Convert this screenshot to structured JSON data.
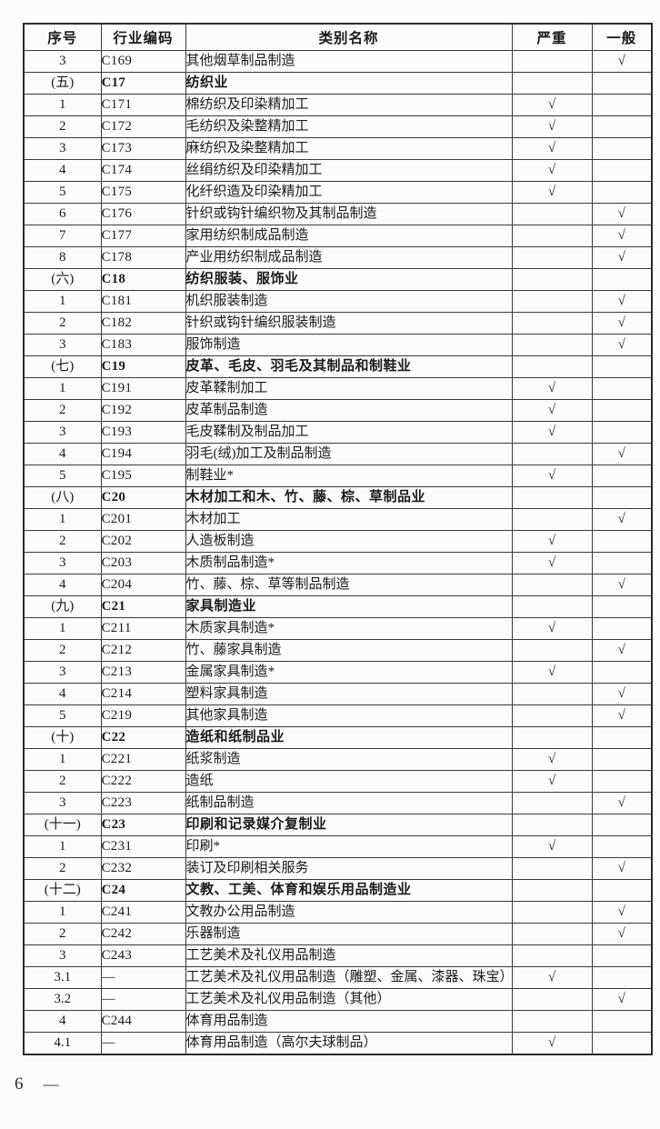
{
  "colors": {
    "border": "#2b2b2b",
    "text": "#1b1b1b",
    "background": "#fcfcfa"
  },
  "footer": {
    "page_number": "6",
    "dash": "—"
  },
  "table": {
    "checkmark": "√",
    "headers": [
      "序号",
      "行业编码",
      "类别名称",
      "严重",
      "一般"
    ],
    "rows": [
      {
        "no": "3",
        "code": "C169",
        "name": "其他烟草制品制造",
        "severe": "",
        "general": "√",
        "section": false
      },
      {
        "no": "(五)",
        "code": "C17",
        "name": "纺织业",
        "severe": "",
        "general": "",
        "section": true
      },
      {
        "no": "1",
        "code": "C171",
        "name": "棉纺织及印染精加工",
        "severe": "√",
        "general": "",
        "section": false
      },
      {
        "no": "2",
        "code": "C172",
        "name": "毛纺织及染整精加工",
        "severe": "√",
        "general": "",
        "section": false
      },
      {
        "no": "3",
        "code": "C173",
        "name": "麻纺织及染整精加工",
        "severe": "√",
        "general": "",
        "section": false
      },
      {
        "no": "4",
        "code": "C174",
        "name": "丝绢纺织及印染精加工",
        "severe": "√",
        "general": "",
        "section": false
      },
      {
        "no": "5",
        "code": "C175",
        "name": "化纤织造及印染精加工",
        "severe": "√",
        "general": "",
        "section": false
      },
      {
        "no": "6",
        "code": "C176",
        "name": "针织或钩针编织物及其制品制造",
        "severe": "",
        "general": "√",
        "section": false
      },
      {
        "no": "7",
        "code": "C177",
        "name": "家用纺织制成品制造",
        "severe": "",
        "general": "√",
        "section": false
      },
      {
        "no": "8",
        "code": "C178",
        "name": "产业用纺织制成品制造",
        "severe": "",
        "general": "√",
        "section": false
      },
      {
        "no": "(六)",
        "code": "C18",
        "name": "纺织服装、服饰业",
        "severe": "",
        "general": "",
        "section": true
      },
      {
        "no": "1",
        "code": "C181",
        "name": "机织服装制造",
        "severe": "",
        "general": "√",
        "section": false
      },
      {
        "no": "2",
        "code": "C182",
        "name": "针织或钩针编织服装制造",
        "severe": "",
        "general": "√",
        "section": false
      },
      {
        "no": "3",
        "code": "C183",
        "name": "服饰制造",
        "severe": "",
        "general": "√",
        "section": false
      },
      {
        "no": "(七)",
        "code": "C19",
        "name": "皮革、毛皮、羽毛及其制品和制鞋业",
        "severe": "",
        "general": "",
        "section": true
      },
      {
        "no": "1",
        "code": "C191",
        "name": "皮革鞣制加工",
        "severe": "√",
        "general": "",
        "section": false
      },
      {
        "no": "2",
        "code": "C192",
        "name": "皮革制品制造",
        "severe": "√",
        "general": "",
        "section": false
      },
      {
        "no": "3",
        "code": "C193",
        "name": "毛皮鞣制及制品加工",
        "severe": "√",
        "general": "",
        "section": false
      },
      {
        "no": "4",
        "code": "C194",
        "name": "羽毛(绒)加工及制品制造",
        "severe": "",
        "general": "√",
        "section": false
      },
      {
        "no": "5",
        "code": "C195",
        "name": "制鞋业*",
        "severe": "√",
        "general": "",
        "section": false
      },
      {
        "no": "(八)",
        "code": "C20",
        "name": "木材加工和木、竹、藤、棕、草制品业",
        "severe": "",
        "general": "",
        "section": true
      },
      {
        "no": "1",
        "code": "C201",
        "name": "木材加工",
        "severe": "",
        "general": "√",
        "section": false
      },
      {
        "no": "2",
        "code": "C202",
        "name": "人造板制造",
        "severe": "√",
        "general": "",
        "section": false
      },
      {
        "no": "3",
        "code": "C203",
        "name": "木质制品制造*",
        "severe": "√",
        "general": "",
        "section": false
      },
      {
        "no": "4",
        "code": "C204",
        "name": "竹、藤、棕、草等制品制造",
        "severe": "",
        "general": "√",
        "section": false
      },
      {
        "no": "(九)",
        "code": "C21",
        "name": "家具制造业",
        "severe": "",
        "general": "",
        "section": true
      },
      {
        "no": "1",
        "code": "C211",
        "name": "木质家具制造*",
        "severe": "√",
        "general": "",
        "section": false
      },
      {
        "no": "2",
        "code": "C212",
        "name": "竹、藤家具制造",
        "severe": "",
        "general": "√",
        "section": false
      },
      {
        "no": "3",
        "code": "C213",
        "name": "金属家具制造*",
        "severe": "√",
        "general": "",
        "section": false
      },
      {
        "no": "4",
        "code": "C214",
        "name": "塑料家具制造",
        "severe": "",
        "general": "√",
        "section": false
      },
      {
        "no": "5",
        "code": "C219",
        "name": "其他家具制造",
        "severe": "",
        "general": "√",
        "section": false
      },
      {
        "no": "(十)",
        "code": "C22",
        "name": "造纸和纸制品业",
        "severe": "",
        "general": "",
        "section": true
      },
      {
        "no": "1",
        "code": "C221",
        "name": "纸浆制造",
        "severe": "√",
        "general": "",
        "section": false
      },
      {
        "no": "2",
        "code": "C222",
        "name": "造纸",
        "severe": "√",
        "general": "",
        "section": false
      },
      {
        "no": "3",
        "code": "C223",
        "name": "纸制品制造",
        "severe": "",
        "general": "√",
        "section": false
      },
      {
        "no": "(十一)",
        "code": "C23",
        "name": "印刷和记录媒介复制业",
        "severe": "",
        "general": "",
        "section": true
      },
      {
        "no": "1",
        "code": "C231",
        "name": "印刷*",
        "severe": "√",
        "general": "",
        "section": false
      },
      {
        "no": "2",
        "code": "C232",
        "name": "装订及印刷相关服务",
        "severe": "",
        "general": "√",
        "section": false
      },
      {
        "no": "(十二)",
        "code": "C24",
        "name": "文教、工美、体育和娱乐用品制造业",
        "severe": "",
        "general": "",
        "section": true
      },
      {
        "no": "1",
        "code": "C241",
        "name": "文教办公用品制造",
        "severe": "",
        "general": "√",
        "section": false
      },
      {
        "no": "2",
        "code": "C242",
        "name": "乐器制造",
        "severe": "",
        "general": "√",
        "section": false
      },
      {
        "no": "3",
        "code": "C243",
        "name": "工艺美术及礼仪用品制造",
        "severe": "",
        "general": "",
        "section": false
      },
      {
        "no": "3.1",
        "code": "—",
        "name": "工艺美术及礼仪用品制造（雕塑、金属、漆器、珠宝）",
        "severe": "√",
        "general": "",
        "section": false
      },
      {
        "no": "3.2",
        "code": "—",
        "name": "工艺美术及礼仪用品制造（其他）",
        "severe": "",
        "general": "√",
        "section": false
      },
      {
        "no": "4",
        "code": "C244",
        "name": "体育用品制造",
        "severe": "",
        "general": "",
        "section": false
      },
      {
        "no": "4.1",
        "code": "—",
        "name": "体育用品制造（高尔夫球制品）",
        "severe": "√",
        "general": "",
        "section": false
      }
    ]
  }
}
